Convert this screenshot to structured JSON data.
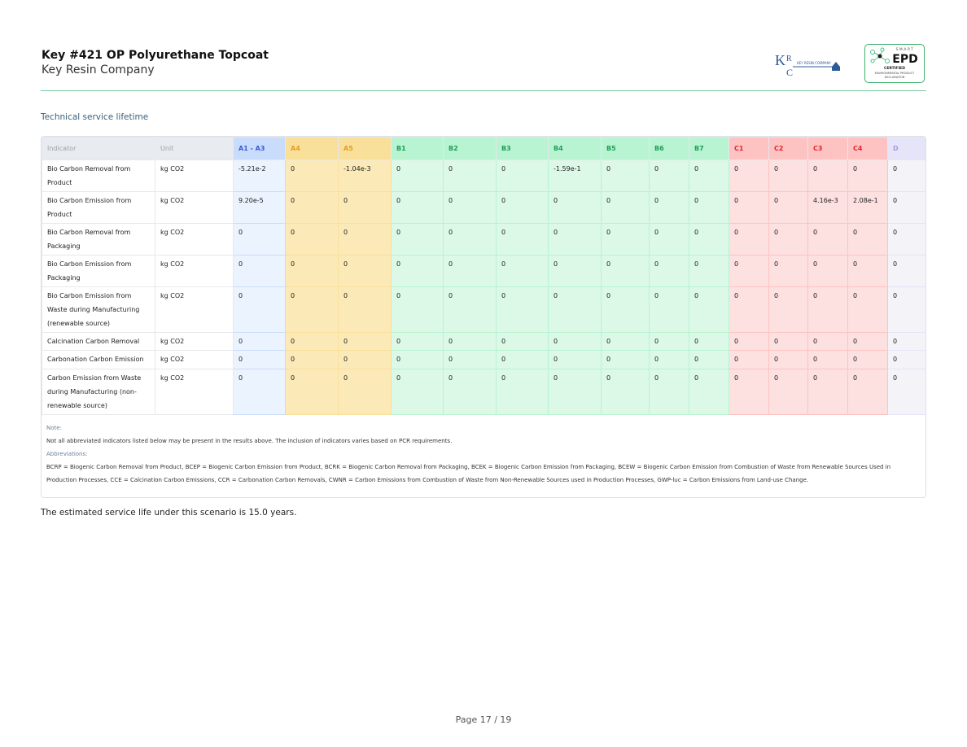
{
  "header": {
    "title": "Key #421 OP Polyurethane Topcoat",
    "company": "Key Resin Company",
    "logo_text": "Key Resin Company",
    "logo_letters": "KRC",
    "epd_badge": {
      "line1": "SMART",
      "line2": "EPD",
      "line3": "CERTIFIED",
      "line4": "ENVIRONMENTAL PRODUCT DECLARATION"
    }
  },
  "section_title": "Technical service lifetime",
  "table": {
    "columns": [
      {
        "label": "Indicator",
        "bg": "#e8ebef",
        "cell": "#ffffff",
        "color": "#9aa4ae"
      },
      {
        "label": "Unit",
        "bg": "#e8ebef",
        "cell": "#ffffff",
        "color": "#9aa4ae"
      },
      {
        "label": "A1 - A3",
        "bg": "#c9dcfb",
        "cell": "#ebf3fe",
        "color": "#3b5bd0"
      },
      {
        "label": "A4",
        "bg": "#f9e09a",
        "cell": "#fbeab8",
        "color": "#e89a1a"
      },
      {
        "label": "A5",
        "bg": "#f9e09a",
        "cell": "#fbeab8",
        "color": "#e89a1a"
      },
      {
        "label": "B1",
        "bg": "#b8f3d2",
        "cell": "#dcf8e7",
        "color": "#1f9e57"
      },
      {
        "label": "B2",
        "bg": "#b8f3d2",
        "cell": "#dcf8e7",
        "color": "#1f9e57"
      },
      {
        "label": "B3",
        "bg": "#b8f3d2",
        "cell": "#dcf8e7",
        "color": "#1f9e57"
      },
      {
        "label": "B4",
        "bg": "#b8f3d2",
        "cell": "#dcf8e7",
        "color": "#1f9e57"
      },
      {
        "label": "B5",
        "bg": "#b8f3d2",
        "cell": "#dcf8e7",
        "color": "#1f9e57"
      },
      {
        "label": "B6",
        "bg": "#b8f3d2",
        "cell": "#dcf8e7",
        "color": "#1f9e57"
      },
      {
        "label": "B7",
        "bg": "#b8f3d2",
        "cell": "#dcf8e7",
        "color": "#1f9e57"
      },
      {
        "label": "C1",
        "bg": "#fdc3c3",
        "cell": "#fde0e0",
        "color": "#e5232b"
      },
      {
        "label": "C2",
        "bg": "#fdc3c3",
        "cell": "#fde0e0",
        "color": "#e5232b"
      },
      {
        "label": "C3",
        "bg": "#fdc3c3",
        "cell": "#fde0e0",
        "color": "#e5232b"
      },
      {
        "label": "C4",
        "bg": "#fdc3c3",
        "cell": "#fde0e0",
        "color": "#e5232b"
      },
      {
        "label": "D",
        "bg": "#e6e4f8",
        "cell": "#f3f3f8",
        "color": "#a79bd8"
      }
    ],
    "rows": [
      [
        "Bio Carbon Removal from Product",
        "kg CO2",
        "-5.21e-2",
        "0",
        "-1.04e-3",
        "0",
        "0",
        "0",
        "-1.59e-1",
        "0",
        "0",
        "0",
        "0",
        "0",
        "0",
        "0",
        "0"
      ],
      [
        "Bio Carbon Emission from Product",
        "kg CO2",
        "9.20e-5",
        "0",
        "0",
        "0",
        "0",
        "0",
        "0",
        "0",
        "0",
        "0",
        "0",
        "0",
        "4.16e-3",
        "2.08e-1",
        "0"
      ],
      [
        "Bio Carbon Removal from Packaging",
        "kg CO2",
        "0",
        "0",
        "0",
        "0",
        "0",
        "0",
        "0",
        "0",
        "0",
        "0",
        "0",
        "0",
        "0",
        "0",
        "0"
      ],
      [
        "Bio Carbon Emission from Packaging",
        "kg CO2",
        "0",
        "0",
        "0",
        "0",
        "0",
        "0",
        "0",
        "0",
        "0",
        "0",
        "0",
        "0",
        "0",
        "0",
        "0"
      ],
      [
        "Bio Carbon Emission from Waste during Manufacturing (renewable source)",
        "kg CO2",
        "0",
        "0",
        "0",
        "0",
        "0",
        "0",
        "0",
        "0",
        "0",
        "0",
        "0",
        "0",
        "0",
        "0",
        "0"
      ],
      [
        "Calcination Carbon Removal",
        "kg CO2",
        "0",
        "0",
        "0",
        "0",
        "0",
        "0",
        "0",
        "0",
        "0",
        "0",
        "0",
        "0",
        "0",
        "0",
        "0"
      ],
      [
        "Carbonation Carbon Emission",
        "kg CO2",
        "0",
        "0",
        "0",
        "0",
        "0",
        "0",
        "0",
        "0",
        "0",
        "0",
        "0",
        "0",
        "0",
        "0",
        "0"
      ],
      [
        "Carbon Emission from Waste during Manufacturing (non-renewable source)",
        "kg CO2",
        "0",
        "0",
        "0",
        "0",
        "0",
        "0",
        "0",
        "0",
        "0",
        "0",
        "0",
        "0",
        "0",
        "0",
        "0"
      ]
    ]
  },
  "notes": {
    "note_label": "Note:",
    "note_text": "Not all abbreviated indicators listed below may be present in the results above. The inclusion of indicators varies based on PCR requirements.",
    "abbr_label": "Abbreviations:",
    "abbr_text": "BCRP = Biogenic Carbon Removal from Product, BCEP = Biogenic Carbon Emission from Product, BCRK = Biogenic Carbon Removal from Packaging, BCEK = Biogenic Carbon Emission from Packaging, BCEW = Biogenic Carbon Emission from Combustion of Waste from Renewable Sources Used in Production Processes, CCE = Calcination Carbon Emissions, CCR = Carbonation Carbon Removals, CWNR = Carbon Emissions from Combustion of Waste from Non-Renewable Sources used in Production Processes, GWP-luc = Carbon Emissions from Land-use Change."
  },
  "service_life_text": "The estimated service life under this scenario is 15.0 years.",
  "page": "Page 17 / 19"
}
